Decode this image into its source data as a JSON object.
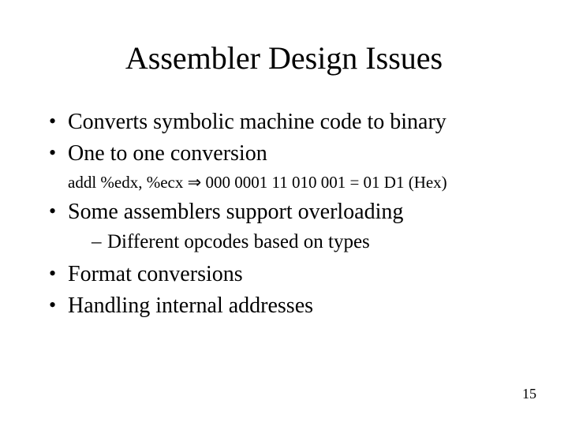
{
  "background_color": "#ffffff",
  "text_color": "#000000",
  "font_family": "Times New Roman",
  "slide": {
    "title": "Assembler Design Issues",
    "title_fontsize": 40,
    "bullets": [
      {
        "text": "Converts symbolic machine code to binary"
      },
      {
        "text": "One to one conversion"
      }
    ],
    "code_line": {
      "prefix": "addl %edx, %ecx ",
      "arrow": "⇒",
      "suffix": " 000 0001 11 010 001 = 01 D1 (Hex)",
      "fontsize": 21
    },
    "bullets2": [
      {
        "text": "Some assemblers support overloading",
        "sub": [
          "Different opcodes based on types"
        ]
      },
      {
        "text": "Format conversions"
      },
      {
        "text": "Handling internal addresses"
      }
    ],
    "bullet_fontsize": 28,
    "sub_bullet_fontsize": 25
  },
  "page_number": "15",
  "page_number_fontsize": 18
}
